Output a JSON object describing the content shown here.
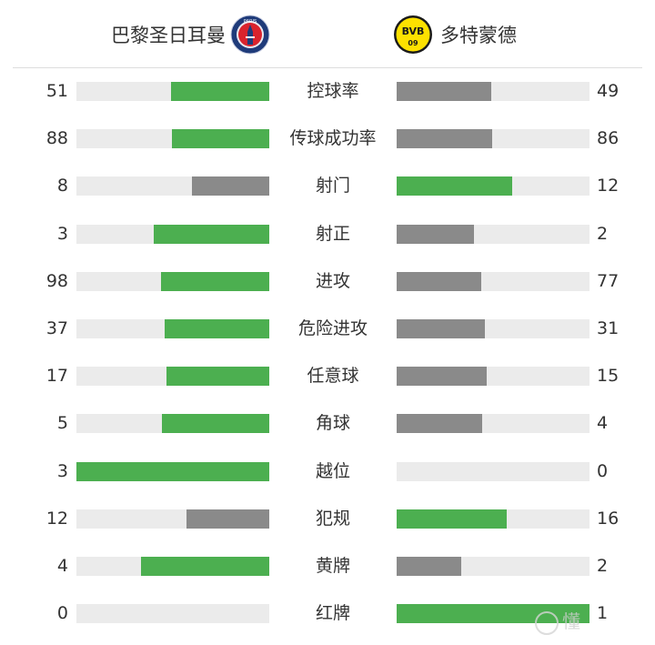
{
  "home_team": {
    "name": "巴黎圣日耳曼",
    "logo_icon": "psg-crest-icon",
    "logo_text": "PARIS"
  },
  "away_team": {
    "name": "多特蒙德",
    "logo_icon": "bvb-crest-icon",
    "logo_text": "BVB",
    "logo_sub": "09"
  },
  "colors": {
    "leader": "#4caf50",
    "trailer": "#8a8a8a",
    "track": "#ebebeb"
  },
  "stats": [
    {
      "label": "控球率",
      "home": 51,
      "away": 49
    },
    {
      "label": "传球成功率",
      "home": 88,
      "away": 86
    },
    {
      "label": "射门",
      "home": 8,
      "away": 12
    },
    {
      "label": "射正",
      "home": 3,
      "away": 2
    },
    {
      "label": "进攻",
      "home": 98,
      "away": 77
    },
    {
      "label": "危险进攻",
      "home": 37,
      "away": 31
    },
    {
      "label": "任意球",
      "home": 17,
      "away": 15
    },
    {
      "label": "角球",
      "home": 5,
      "away": 4
    },
    {
      "label": "越位",
      "home": 3,
      "away": 0
    },
    {
      "label": "犯规",
      "home": 12,
      "away": 16
    },
    {
      "label": "黄牌",
      "home": 4,
      "away": 2
    },
    {
      "label": "红牌",
      "home": 0,
      "away": 1
    }
  ],
  "watermark": {
    "icon": "football-watermark-icon",
    "text": "懂"
  }
}
